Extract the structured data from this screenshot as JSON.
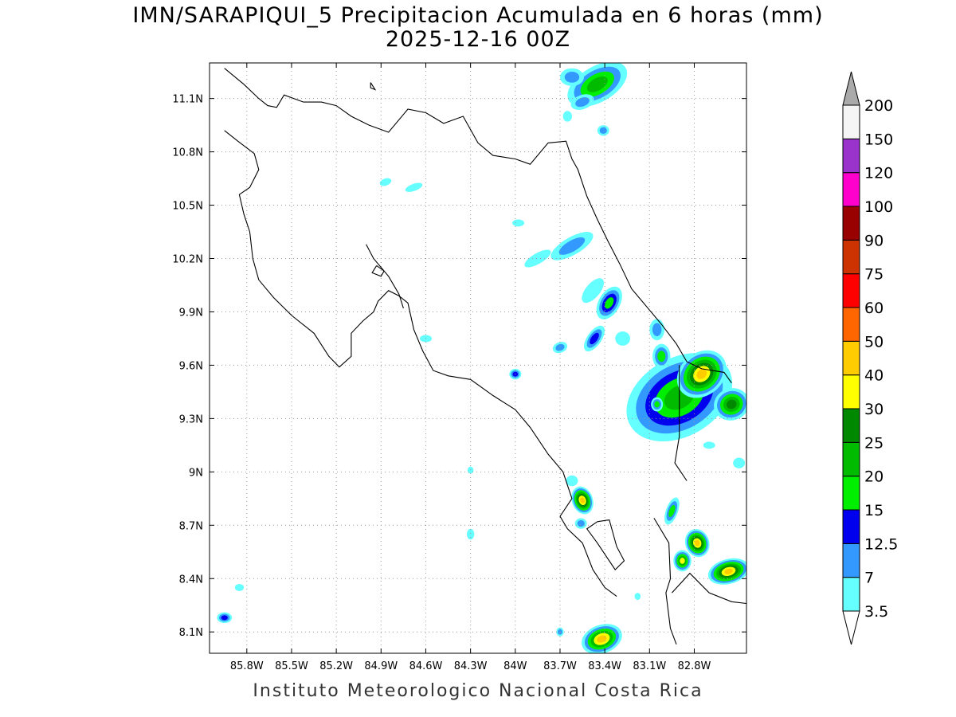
{
  "title": {
    "line1": "IMN/SARAPIQUI_5 Precipitacion Acumulada en 6 horas (mm)",
    "line2": "2025-12-16 00Z"
  },
  "footer": "Instituto Meteorologico Nacional Costa Rica",
  "axes": {
    "lon_range": [
      -86.05,
      -82.45
    ],
    "lat_range": [
      7.98,
      11.3
    ],
    "lon_ticks": [
      {
        "value": -85.8,
        "label": "85.8W"
      },
      {
        "value": -85.5,
        "label": "85.5W"
      },
      {
        "value": -85.2,
        "label": "85.2W"
      },
      {
        "value": -84.9,
        "label": "84.9W"
      },
      {
        "value": -84.6,
        "label": "84.6W"
      },
      {
        "value": -84.3,
        "label": "84.3W"
      },
      {
        "value": -84.0,
        "label": "84W"
      },
      {
        "value": -83.7,
        "label": "83.7W"
      },
      {
        "value": -83.4,
        "label": "83.4W"
      },
      {
        "value": -83.1,
        "label": "83.1W"
      },
      {
        "value": -82.8,
        "label": "82.8W"
      }
    ],
    "lat_ticks": [
      {
        "value": 8.1,
        "label": "8.1N"
      },
      {
        "value": 8.4,
        "label": "8.4N"
      },
      {
        "value": 8.7,
        "label": "8.7N"
      },
      {
        "value": 9.0,
        "label": "9N"
      },
      {
        "value": 9.3,
        "label": "9.3N"
      },
      {
        "value": 9.6,
        "label": "9.6N"
      },
      {
        "value": 9.9,
        "label": "9.9N"
      },
      {
        "value": 10.2,
        "label": "10.2N"
      },
      {
        "value": 10.5,
        "label": "10.5N"
      },
      {
        "value": 10.8,
        "label": "10.8N"
      },
      {
        "value": 11.1,
        "label": "11.1N"
      }
    ],
    "grid": true
  },
  "colorbar": {
    "placement": "right",
    "levels": [
      {
        "label": "3.5",
        "color": "#66ffff"
      },
      {
        "label": "7",
        "color": "#3399ff"
      },
      {
        "label": "12.5",
        "color": "#0000ee"
      },
      {
        "label": "15",
        "color": "#00ee00"
      },
      {
        "label": "20",
        "color": "#00bb00"
      },
      {
        "label": "25",
        "color": "#008800"
      },
      {
        "label": "30",
        "color": "#ffff00"
      },
      {
        "label": "40",
        "color": "#ffcc00"
      },
      {
        "label": "50",
        "color": "#ff6600"
      },
      {
        "label": "60",
        "color": "#ff0000"
      },
      {
        "label": "75",
        "color": "#cc3300"
      },
      {
        "label": "90",
        "color": "#990000"
      },
      {
        "label": "100",
        "color": "#ff00cc"
      },
      {
        "label": "120",
        "color": "#9933cc"
      },
      {
        "label": "150",
        "color": "#f5f5f5"
      },
      {
        "label": "200",
        "color": "#aaaaaa"
      }
    ]
  },
  "coastline": [
    [
      [
        -85.95,
        11.27
      ],
      [
        -85.82,
        11.18
      ],
      [
        -85.72,
        11.1
      ],
      [
        -85.66,
        11.06
      ],
      [
        -85.6,
        11.05
      ],
      [
        -85.55,
        11.12
      ],
      [
        -85.42,
        11.08
      ],
      [
        -85.3,
        11.08
      ],
      [
        -85.2,
        11.06
      ],
      [
        -85.1,
        11.0
      ],
      [
        -84.98,
        10.95
      ],
      [
        -84.85,
        10.91
      ],
      [
        -84.72,
        11.04
      ],
      [
        -84.6,
        11.02
      ],
      [
        -84.48,
        10.96
      ],
      [
        -84.35,
        11.0
      ],
      [
        -84.25,
        10.85
      ],
      [
        -84.15,
        10.78
      ],
      [
        -84.0,
        10.76
      ],
      [
        -83.9,
        10.73
      ],
      [
        -83.78,
        10.85
      ],
      [
        -83.66,
        10.86
      ],
      [
        -83.62,
        10.76
      ],
      [
        -83.58,
        10.7
      ],
      [
        -83.52,
        10.55
      ],
      [
        -83.45,
        10.42
      ],
      [
        -83.38,
        10.3
      ],
      [
        -83.3,
        10.17
      ],
      [
        -83.22,
        10.03
      ],
      [
        -83.12,
        9.93
      ],
      [
        -83.02,
        9.83
      ],
      [
        -82.92,
        9.72
      ],
      [
        -82.85,
        9.62
      ],
      [
        -82.75,
        9.58
      ],
      [
        -82.6,
        9.56
      ],
      [
        -82.55,
        9.5
      ]
    ],
    [
      [
        -85.95,
        10.92
      ],
      [
        -85.86,
        10.86
      ],
      [
        -85.75,
        10.79
      ],
      [
        -85.72,
        10.7
      ],
      [
        -85.78,
        10.6
      ],
      [
        -85.85,
        10.56
      ],
      [
        -85.82,
        10.45
      ],
      [
        -85.78,
        10.35
      ],
      [
        -85.76,
        10.2
      ],
      [
        -85.72,
        10.08
      ],
      [
        -85.62,
        9.98
      ],
      [
        -85.5,
        9.88
      ],
      [
        -85.35,
        9.78
      ],
      [
        -85.25,
        9.65
      ],
      [
        -85.18,
        9.59
      ],
      [
        -85.1,
        9.65
      ],
      [
        -85.1,
        9.78
      ],
      [
        -85.02,
        9.85
      ],
      [
        -84.95,
        9.9
      ],
      [
        -84.92,
        9.96
      ],
      [
        -84.85,
        10.02
      ],
      [
        -84.78,
        9.99
      ],
      [
        -84.72,
        9.95
      ],
      [
        -84.68,
        9.8
      ],
      [
        -84.62,
        9.68
      ],
      [
        -84.55,
        9.57
      ],
      [
        -84.45,
        9.54
      ],
      [
        -84.3,
        9.52
      ],
      [
        -84.15,
        9.43
      ],
      [
        -84.0,
        9.35
      ],
      [
        -83.9,
        9.25
      ],
      [
        -83.78,
        9.1
      ],
      [
        -83.68,
        9.0
      ],
      [
        -83.62,
        8.85
      ],
      [
        -83.7,
        8.75
      ],
      [
        -83.65,
        8.68
      ],
      [
        -83.55,
        8.6
      ],
      [
        -83.48,
        8.45
      ],
      [
        -83.4,
        8.35
      ],
      [
        -83.32,
        8.3
      ]
    ],
    [
      [
        -83.07,
        8.74
      ],
      [
        -82.97,
        8.6
      ],
      [
        -82.96,
        8.4
      ],
      [
        -82.99,
        8.32
      ],
      [
        -82.96,
        8.12
      ],
      [
        -82.92,
        8.03
      ]
    ],
    [
      [
        -82.95,
        8.32
      ],
      [
        -82.83,
        8.43
      ],
      [
        -82.7,
        8.32
      ],
      [
        -82.55,
        8.27
      ],
      [
        -82.45,
        8.26
      ]
    ],
    [
      [
        -82.9,
        9.6
      ],
      [
        -82.9,
        9.2
      ],
      [
        -82.93,
        9.05
      ],
      [
        -82.85,
        8.95
      ]
    ],
    [
      [
        -83.45,
        8.72
      ],
      [
        -83.37,
        8.73
      ],
      [
        -83.32,
        8.58
      ],
      [
        -83.27,
        8.5
      ],
      [
        -83.33,
        8.45
      ],
      [
        -83.45,
        8.6
      ],
      [
        -83.52,
        8.68
      ],
      [
        -83.45,
        8.72
      ]
    ],
    [
      [
        -85.0,
        10.28
      ],
      [
        -84.95,
        10.2
      ],
      [
        -84.85,
        10.1
      ],
      [
        -84.78,
        10.0
      ],
      [
        -84.75,
        9.92
      ]
    ],
    [
      [
        -84.93,
        10.16
      ],
      [
        -84.88,
        10.13
      ],
      [
        -84.9,
        10.1
      ],
      [
        -84.96,
        10.12
      ],
      [
        -84.93,
        10.16
      ]
    ],
    [
      [
        -84.97,
        11.19
      ],
      [
        -84.94,
        11.15
      ],
      [
        -84.97,
        11.16
      ],
      [
        -84.97,
        11.19
      ]
    ]
  ],
  "precip_cells": [
    {
      "lon": -83.45,
      "lat": 11.18,
      "w": 0.22,
      "h": 0.1,
      "rot": -30,
      "levels": [
        1,
        2,
        4,
        5
      ]
    },
    {
      "lon": -83.62,
      "lat": 11.22,
      "w": 0.08,
      "h": 0.05,
      "rot": 0,
      "levels": [
        1,
        2
      ]
    },
    {
      "lon": -83.55,
      "lat": 11.08,
      "w": 0.08,
      "h": 0.04,
      "rot": -20,
      "levels": [
        1,
        2
      ]
    },
    {
      "lon": -83.41,
      "lat": 10.92,
      "w": 0.04,
      "h": 0.03,
      "rot": 0,
      "levels": [
        1,
        2
      ]
    },
    {
      "lon": -83.65,
      "lat": 11.0,
      "w": 0.03,
      "h": 0.03,
      "rot": 0,
      "levels": [
        1
      ]
    },
    {
      "lon": -84.87,
      "lat": 10.63,
      "w": 0.04,
      "h": 0.02,
      "rot": -20,
      "levels": [
        1
      ]
    },
    {
      "lon": -84.68,
      "lat": 10.6,
      "w": 0.06,
      "h": 0.02,
      "rot": -20,
      "levels": [
        1
      ]
    },
    {
      "lon": -83.62,
      "lat": 10.27,
      "w": 0.16,
      "h": 0.05,
      "rot": -30,
      "levels": [
        1,
        2
      ]
    },
    {
      "lon": -83.85,
      "lat": 10.2,
      "w": 0.1,
      "h": 0.03,
      "rot": -30,
      "levels": [
        1
      ]
    },
    {
      "lon": -83.98,
      "lat": 10.4,
      "w": 0.04,
      "h": 0.02,
      "rot": 0,
      "levels": [
        1
      ]
    },
    {
      "lon": -83.48,
      "lat": 10.02,
      "w": 0.1,
      "h": 0.04,
      "rot": -50,
      "levels": [
        1
      ]
    },
    {
      "lon": -83.37,
      "lat": 9.95,
      "w": 0.12,
      "h": 0.06,
      "rot": -60,
      "levels": [
        1,
        2,
        3,
        4
      ]
    },
    {
      "lon": -83.47,
      "lat": 9.75,
      "w": 0.1,
      "h": 0.04,
      "rot": -55,
      "levels": [
        1,
        2,
        3
      ]
    },
    {
      "lon": -83.28,
      "lat": 9.75,
      "w": 0.05,
      "h": 0.04,
      "rot": 0,
      "levels": [
        1
      ]
    },
    {
      "lon": -83.7,
      "lat": 9.7,
      "w": 0.05,
      "h": 0.03,
      "rot": -20,
      "levels": [
        1,
        2
      ]
    },
    {
      "lon": -84.0,
      "lat": 9.55,
      "w": 0.04,
      "h": 0.03,
      "rot": 0,
      "levels": [
        1,
        2,
        3
      ]
    },
    {
      "lon": -83.05,
      "lat": 9.8,
      "w": 0.05,
      "h": 0.06,
      "rot": 0,
      "levels": [
        1,
        2
      ]
    },
    {
      "lon": -82.9,
      "lat": 9.42,
      "w": 0.38,
      "h": 0.22,
      "rot": -30,
      "levels": [
        1,
        2,
        3,
        4,
        5
      ]
    },
    {
      "lon": -82.75,
      "lat": 9.55,
      "w": 0.18,
      "h": 0.12,
      "rot": -40,
      "levels": [
        1,
        2,
        4,
        5,
        6,
        7,
        8
      ]
    },
    {
      "lon": -82.55,
      "lat": 9.38,
      "w": 0.12,
      "h": 0.09,
      "rot": -20,
      "levels": [
        1,
        2,
        4,
        5,
        6
      ]
    },
    {
      "lon": -83.02,
      "lat": 9.65,
      "w": 0.06,
      "h": 0.07,
      "rot": 0,
      "levels": [
        1,
        2,
        4
      ]
    },
    {
      "lon": -83.05,
      "lat": 9.38,
      "w": 0.04,
      "h": 0.04,
      "rot": 0,
      "levels": [
        1,
        2,
        4
      ]
    },
    {
      "lon": -82.7,
      "lat": 9.15,
      "w": 0.04,
      "h": 0.02,
      "rot": 0,
      "levels": [
        1
      ]
    },
    {
      "lon": -82.5,
      "lat": 9.05,
      "w": 0.04,
      "h": 0.03,
      "rot": 0,
      "levels": [
        1
      ]
    },
    {
      "lon": -83.55,
      "lat": 8.84,
      "w": 0.07,
      "h": 0.08,
      "rot": -20,
      "levels": [
        1,
        2,
        4,
        5,
        6,
        7,
        8
      ]
    },
    {
      "lon": -83.62,
      "lat": 8.95,
      "w": 0.04,
      "h": 0.03,
      "rot": 0,
      "levels": [
        1
      ]
    },
    {
      "lon": -83.56,
      "lat": 8.71,
      "w": 0.04,
      "h": 0.03,
      "rot": 0,
      "levels": [
        1,
        2
      ]
    },
    {
      "lon": -82.95,
      "lat": 8.78,
      "w": 0.04,
      "h": 0.08,
      "rot": 20,
      "levels": [
        1,
        2,
        4
      ]
    },
    {
      "lon": -82.78,
      "lat": 8.6,
      "w": 0.08,
      "h": 0.08,
      "rot": -20,
      "levels": [
        1,
        2,
        4,
        5,
        6,
        7,
        8
      ]
    },
    {
      "lon": -82.88,
      "lat": 8.5,
      "w": 0.06,
      "h": 0.06,
      "rot": 0,
      "levels": [
        1,
        2,
        4,
        5,
        7
      ]
    },
    {
      "lon": -82.57,
      "lat": 8.44,
      "w": 0.14,
      "h": 0.07,
      "rot": -15,
      "levels": [
        1,
        2,
        4,
        5,
        6,
        7,
        8
      ]
    },
    {
      "lon": -83.42,
      "lat": 8.06,
      "w": 0.14,
      "h": 0.08,
      "rot": -20,
      "levels": [
        1,
        2,
        4,
        5,
        7,
        8
      ]
    },
    {
      "lon": -85.95,
      "lat": 8.18,
      "w": 0.05,
      "h": 0.03,
      "rot": 0,
      "levels": [
        1,
        2,
        3
      ]
    },
    {
      "lon": -85.85,
      "lat": 8.35,
      "w": 0.03,
      "h": 0.02,
      "rot": 0,
      "levels": [
        1
      ]
    },
    {
      "lon": -84.3,
      "lat": 9.01,
      "w": 0.02,
      "h": 0.02,
      "rot": 0,
      "levels": [
        1
      ]
    },
    {
      "lon": -84.3,
      "lat": 8.65,
      "w": 0.025,
      "h": 0.03,
      "rot": 0,
      "levels": [
        1
      ]
    },
    {
      "lon": -83.7,
      "lat": 8.1,
      "w": 0.025,
      "h": 0.025,
      "rot": 0,
      "levels": [
        1,
        2
      ]
    },
    {
      "lon": -83.18,
      "lat": 8.3,
      "w": 0.02,
      "h": 0.02,
      "rot": 0,
      "levels": [
        1
      ]
    },
    {
      "lon": -84.6,
      "lat": 9.75,
      "w": 0.04,
      "h": 0.02,
      "rot": 0,
      "levels": [
        1
      ]
    }
  ]
}
